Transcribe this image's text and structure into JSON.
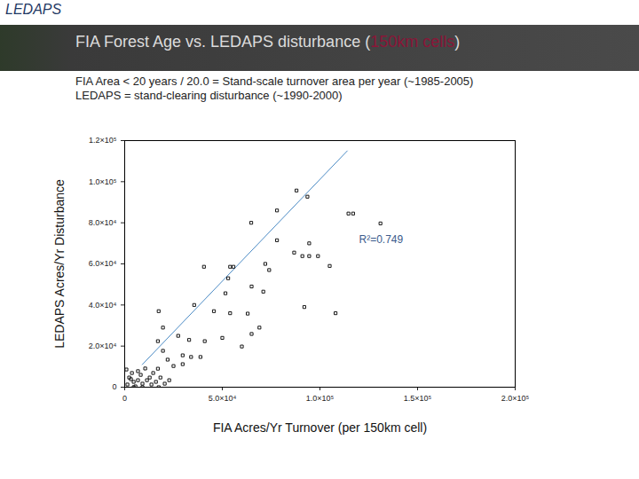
{
  "header": "LEDAPS",
  "chart_data": {
    "type": "scatter",
    "title": "FIA Forest Age vs. LEDAPS disturbance (150km cells)",
    "title_highlight": {
      "text": "150km cells",
      "color": "#8a1538"
    },
    "subtitle": [
      "FIA Area < 20 years / 20.0 = Stand-scale turnover area per year (~1985-2005)",
      "LEDAPS = stand-clearing disturbance (~1990-2000)"
    ],
    "x_label": "FIA Acres/Yr Turnover (per 150km cell)",
    "y_label": "LEDAPS Acres/Yr Disturbance",
    "x": [
      93600,
      88000,
      78000,
      64800,
      114600,
      117000,
      131000,
      94500,
      78000,
      86800,
      91000,
      94500,
      99000,
      105000,
      40600,
      54000,
      55700,
      72000,
      74000,
      53000,
      65000,
      51600,
      71000,
      17400,
      35600,
      45700,
      54000,
      63000,
      92000,
      108000,
      65000,
      69000,
      19600,
      27400,
      33000,
      41000,
      50000,
      60000,
      17000,
      29700,
      34000,
      38800,
      29700,
      25000,
      19600,
      22000,
      17000,
      14600,
      2300,
      4600,
      6800,
      9100,
      3700,
      5500,
      8200,
      11400,
      13700,
      1400,
      3200,
      10500,
      12800,
      16000,
      18300,
      20500,
      22800,
      6800,
      900,
      17400,
      4600,
      9100
    ],
    "y": [
      92700,
      95700,
      86000,
      80000,
      84500,
      84500,
      79700,
      70000,
      71500,
      65500,
      63800,
      63800,
      63800,
      59000,
      58600,
      58600,
      58600,
      60000,
      57000,
      53000,
      49000,
      45700,
      46500,
      37000,
      40000,
      37000,
      36000,
      35800,
      39000,
      36000,
      25900,
      29000,
      29000,
      25000,
      23000,
      22400,
      24000,
      19800,
      22400,
      15500,
      14700,
      14700,
      11200,
      10300,
      17700,
      13400,
      9000,
      6900,
      4700,
      2600,
      3400,
      1700,
      6900,
      400,
      6000,
      3400,
      1300,
      1300,
      3900,
      9100,
      4700,
      2600,
      4700,
      1700,
      3400,
      7800,
      8600,
      0,
      0,
      0
    ],
    "color": "#000000",
    "marker": "square",
    "fit": {
      "x": [
        9000,
        114000
      ],
      "y": [
        11000,
        115000
      ],
      "color": "#4a8ac4"
    },
    "annotations": [
      {
        "text": "R²=0.749",
        "x": 120000,
        "y": 72000,
        "color": "#3b5b8c"
      }
    ],
    "xlim": [
      0,
      200000
    ],
    "ylim": [
      0,
      120000
    ],
    "xticks": [
      0,
      {
        "value": 50000,
        "label": "5.0×10⁴"
      },
      {
        "value": 100000,
        "label": "1.0×10⁵"
      },
      {
        "value": 150000,
        "label": "1.5×10⁵"
      },
      {
        "value": 200000,
        "label": "2.0×10⁵"
      }
    ],
    "yticks": [
      0,
      {
        "value": 20000,
        "label": "2.0×10⁴"
      },
      {
        "value": 40000,
        "label": "4.0×10⁴"
      },
      {
        "value": 60000,
        "label": "6.0×10⁴"
      },
      {
        "value": 80000,
        "label": "8.0×10⁴"
      },
      {
        "value": 100000,
        "label": "1.0×10⁵"
      },
      {
        "value": 120000,
        "label": "1.2×10⁵"
      }
    ],
    "grid": false
  }
}
